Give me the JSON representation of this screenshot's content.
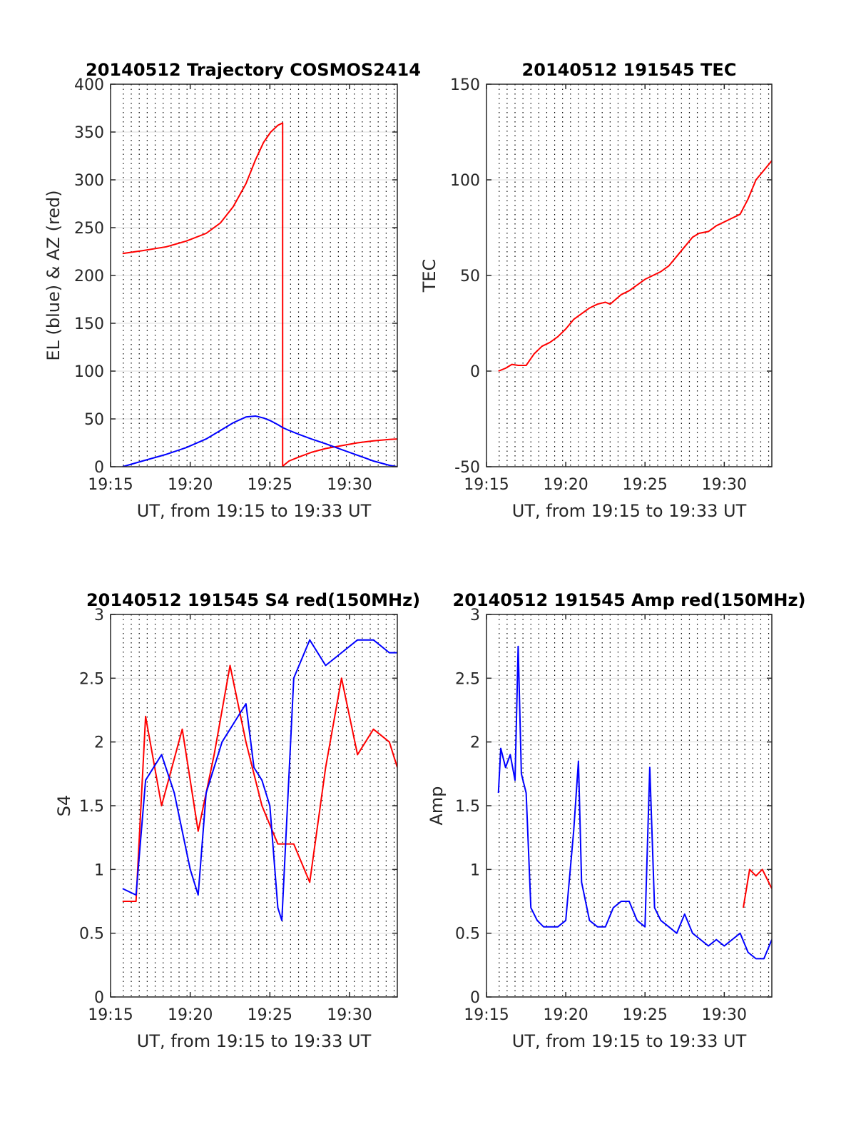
{
  "figure": {
    "background": "#ffffff",
    "grid_style": "dotted vertical (~30 s), solid light horizontal"
  },
  "chart_data": [
    {
      "id": "trajectory",
      "type": "line",
      "title": "20140512 Trajectory COSMOS2414",
      "xlabel": "UT, from 19:15 to 19:33 UT",
      "ylabel": "EL (blue) & AZ (red)",
      "xlim": [
        0,
        18
      ],
      "ylim": [
        0,
        400
      ],
      "xticks": [
        {
          "value": 0,
          "label": "19:15"
        },
        {
          "value": 5,
          "label": "19:20"
        },
        {
          "value": 10,
          "label": "19:25"
        },
        {
          "value": 15,
          "label": "19:30"
        }
      ],
      "yticks": [
        {
          "value": 0,
          "label": "0"
        },
        {
          "value": 50,
          "label": "50"
        },
        {
          "value": 100,
          "label": "100"
        },
        {
          "value": 150,
          "label": "150"
        },
        {
          "value": 200,
          "label": "200"
        },
        {
          "value": 250,
          "label": "250"
        },
        {
          "value": 300,
          "label": "300"
        },
        {
          "value": 350,
          "label": "350"
        },
        {
          "value": 400,
          "label": "400"
        }
      ],
      "grid": true,
      "series": [
        {
          "color": "#ff0000",
          "values": [
            [
              0.75,
              223
            ],
            [
              2,
              226
            ],
            [
              3.5,
              230
            ],
            [
              4.75,
              236
            ],
            [
              6,
              244
            ],
            [
              6.9,
              255
            ],
            [
              7.7,
              272
            ],
            [
              8.5,
              296
            ],
            [
              9.1,
              321
            ],
            [
              9.6,
              339
            ],
            [
              10.05,
              350
            ],
            [
              10.5,
              357
            ],
            [
              10.8,
              359.5
            ],
            [
              10.8,
              0.5
            ],
            [
              11.2,
              6
            ],
            [
              11.8,
              10
            ],
            [
              12.6,
              15
            ],
            [
              13.5,
              19
            ],
            [
              14.5,
              22
            ],
            [
              15.5,
              25
            ],
            [
              16.5,
              27
            ],
            [
              17.5,
              28.5
            ],
            [
              18,
              29
            ]
          ]
        },
        {
          "color": "#0000ff",
          "values": [
            [
              0.75,
              0
            ],
            [
              2,
              6
            ],
            [
              3.5,
              13
            ],
            [
              4.75,
              20
            ],
            [
              6,
              29
            ],
            [
              6.9,
              38
            ],
            [
              7.7,
              46
            ],
            [
              8.5,
              52
            ],
            [
              9.1,
              53
            ],
            [
              9.6,
              51
            ],
            [
              10.05,
              48
            ],
            [
              10.5,
              44
            ],
            [
              10.8,
              41
            ],
            [
              11.2,
              38
            ],
            [
              11.8,
              34
            ],
            [
              12.6,
              29
            ],
            [
              13.5,
              24
            ],
            [
              14.5,
              18
            ],
            [
              15.5,
              12
            ],
            [
              16.5,
              6
            ],
            [
              17.5,
              1.5
            ],
            [
              18,
              0
            ]
          ]
        }
      ]
    },
    {
      "id": "tec",
      "type": "line",
      "title": "20140512 191545 TEC",
      "xlabel": "UT, from 19:15 to 19:33 UT",
      "ylabel": "TEC",
      "xlim": [
        0,
        18
      ],
      "ylim": [
        -50,
        150
      ],
      "xticks": [
        {
          "value": 0,
          "label": "19:15"
        },
        {
          "value": 5,
          "label": "19:20"
        },
        {
          "value": 10,
          "label": "19:25"
        },
        {
          "value": 15,
          "label": "19:30"
        }
      ],
      "yticks": [
        {
          "value": -50,
          "label": "-50"
        },
        {
          "value": 0,
          "label": "0"
        },
        {
          "value": 50,
          "label": "50"
        },
        {
          "value": 100,
          "label": "100"
        },
        {
          "value": 150,
          "label": "150"
        }
      ],
      "grid": true,
      "series": [
        {
          "color": "#ff0000",
          "values": [
            [
              0.75,
              0
            ],
            [
              1.2,
              1.5
            ],
            [
              1.6,
              3.5
            ],
            [
              2.0,
              3
            ],
            [
              2.5,
              3
            ],
            [
              3.0,
              9
            ],
            [
              3.5,
              13
            ],
            [
              4.0,
              15
            ],
            [
              4.5,
              18
            ],
            [
              5.0,
              22
            ],
            [
              5.5,
              27
            ],
            [
              6.0,
              30
            ],
            [
              6.5,
              33
            ],
            [
              7.0,
              35
            ],
            [
              7.5,
              36
            ],
            [
              7.8,
              35
            ],
            [
              8.5,
              40
            ],
            [
              9.0,
              42
            ],
            [
              9.5,
              45
            ],
            [
              10.0,
              48
            ],
            [
              10.5,
              50
            ],
            [
              11.0,
              52
            ],
            [
              11.5,
              55
            ],
            [
              12.0,
              60
            ],
            [
              12.5,
              65
            ],
            [
              13.0,
              70
            ],
            [
              13.4,
              72
            ],
            [
              14.0,
              73
            ],
            [
              14.5,
              76
            ],
            [
              15.0,
              78
            ],
            [
              15.5,
              80
            ],
            [
              16.0,
              82
            ],
            [
              16.5,
              90
            ],
            [
              17.0,
              100
            ],
            [
              17.5,
              105
            ],
            [
              18.0,
              110
            ]
          ]
        }
      ]
    },
    {
      "id": "s4",
      "type": "line",
      "title": "20140512 191545 S4 red(150MHz)",
      "xlabel": "UT, from 19:15 to 19:33 UT",
      "ylabel": "S4",
      "xlim": [
        0,
        18
      ],
      "ylim": [
        0,
        3
      ],
      "xticks": [
        {
          "value": 0,
          "label": "19:15"
        },
        {
          "value": 5,
          "label": "19:20"
        },
        {
          "value": 10,
          "label": "19:25"
        },
        {
          "value": 15,
          "label": "19:30"
        }
      ],
      "yticks": [
        {
          "value": 0,
          "label": "0"
        },
        {
          "value": 0.5,
          "label": "0.5"
        },
        {
          "value": 1,
          "label": "1"
        },
        {
          "value": 1.5,
          "label": "1.5"
        },
        {
          "value": 2,
          "label": "2"
        },
        {
          "value": 2.5,
          "label": "2.5"
        },
        {
          "value": 3,
          "label": "3"
        }
      ],
      "grid": true,
      "series": [
        {
          "color": "#ff0000",
          "values": [
            [
              0.75,
              0.75
            ],
            [
              1.6,
              0.75
            ],
            [
              2.2,
              2.2
            ],
            [
              3.2,
              1.5
            ],
            [
              4.5,
              2.1
            ],
            [
              5.5,
              1.3
            ],
            [
              6.5,
              1.9
            ],
            [
              7.5,
              2.6
            ],
            [
              8.5,
              2.0
            ],
            [
              9.5,
              1.5
            ],
            [
              10.5,
              1.2
            ],
            [
              11.5,
              1.2
            ],
            [
              12.5,
              0.9
            ],
            [
              13.5,
              1.8
            ],
            [
              14.5,
              2.5
            ],
            [
              15.5,
              1.9
            ],
            [
              16.5,
              2.1
            ],
            [
              17.5,
              2.0
            ],
            [
              18,
              1.8
            ]
          ]
        },
        {
          "color": "#0000ff",
          "values": [
            [
              0.75,
              0.85
            ],
            [
              1.6,
              0.8
            ],
            [
              2.2,
              1.7
            ],
            [
              3.2,
              1.9
            ],
            [
              4.0,
              1.6
            ],
            [
              4.5,
              1.3
            ],
            [
              5.0,
              1.0
            ],
            [
              5.5,
              0.8
            ],
            [
              6.0,
              1.6
            ],
            [
              7.0,
              2.0
            ],
            [
              8.0,
              2.2
            ],
            [
              8.5,
              2.3
            ],
            [
              9.0,
              1.8
            ],
            [
              9.5,
              1.7
            ],
            [
              10.0,
              1.5
            ],
            [
              10.5,
              0.7
            ],
            [
              10.75,
              0.6
            ],
            [
              11.5,
              2.5
            ],
            [
              12.5,
              2.8
            ],
            [
              13.5,
              2.6
            ],
            [
              14.5,
              2.7
            ],
            [
              15.5,
              2.8
            ],
            [
              16.5,
              2.8
            ],
            [
              17.5,
              2.7
            ],
            [
              18,
              2.7
            ]
          ]
        }
      ]
    },
    {
      "id": "amp",
      "type": "line",
      "title": "20140512 191545 Amp red(150MHz)",
      "xlabel": "UT, from 19:15 to 19:33 UT",
      "ylabel": "Amp",
      "xlim": [
        0,
        18
      ],
      "ylim": [
        0,
        3
      ],
      "xticks": [
        {
          "value": 0,
          "label": "19:15"
        },
        {
          "value": 5,
          "label": "19:20"
        },
        {
          "value": 10,
          "label": "19:25"
        },
        {
          "value": 15,
          "label": "19:30"
        }
      ],
      "yticks": [
        {
          "value": 0,
          "label": "0"
        },
        {
          "value": 0.5,
          "label": "0.5"
        },
        {
          "value": 1,
          "label": "1"
        },
        {
          "value": 1.5,
          "label": "1.5"
        },
        {
          "value": 2,
          "label": "2"
        },
        {
          "value": 2.5,
          "label": "2.5"
        },
        {
          "value": 3,
          "label": "3"
        }
      ],
      "grid": true,
      "series": [
        {
          "color": "#ff0000",
          "values": [
            [
              16.2,
              0.7
            ],
            [
              16.6,
              1.0
            ],
            [
              17.0,
              0.95
            ],
            [
              17.4,
              1.0
            ],
            [
              17.8,
              0.9
            ],
            [
              18,
              0.85
            ]
          ]
        },
        {
          "color": "#0000ff",
          "values": [
            [
              0.75,
              1.6
            ],
            [
              0.9,
              1.95
            ],
            [
              1.2,
              1.8
            ],
            [
              1.5,
              1.9
            ],
            [
              1.8,
              1.7
            ],
            [
              2.0,
              2.75
            ],
            [
              2.2,
              1.75
            ],
            [
              2.5,
              1.6
            ],
            [
              2.8,
              0.7
            ],
            [
              3.2,
              0.6
            ],
            [
              3.6,
              0.55
            ],
            [
              4.0,
              0.55
            ],
            [
              4.5,
              0.55
            ],
            [
              5.0,
              0.6
            ],
            [
              5.5,
              1.3
            ],
            [
              5.8,
              1.85
            ],
            [
              6.0,
              0.9
            ],
            [
              6.5,
              0.6
            ],
            [
              7.0,
              0.55
            ],
            [
              7.5,
              0.55
            ],
            [
              8.0,
              0.7
            ],
            [
              8.5,
              0.75
            ],
            [
              9.0,
              0.75
            ],
            [
              9.5,
              0.6
            ],
            [
              10.0,
              0.55
            ],
            [
              10.3,
              1.8
            ],
            [
              10.6,
              0.7
            ],
            [
              11.0,
              0.6
            ],
            [
              11.5,
              0.55
            ],
            [
              12.0,
              0.5
            ],
            [
              12.5,
              0.65
            ],
            [
              13.0,
              0.5
            ],
            [
              13.5,
              0.45
            ],
            [
              14.0,
              0.4
            ],
            [
              14.5,
              0.45
            ],
            [
              15.0,
              0.4
            ],
            [
              15.5,
              0.45
            ],
            [
              16.0,
              0.5
            ],
            [
              16.5,
              0.35
            ],
            [
              17.0,
              0.3
            ],
            [
              17.5,
              0.3
            ],
            [
              18,
              0.45
            ]
          ]
        }
      ]
    }
  ]
}
